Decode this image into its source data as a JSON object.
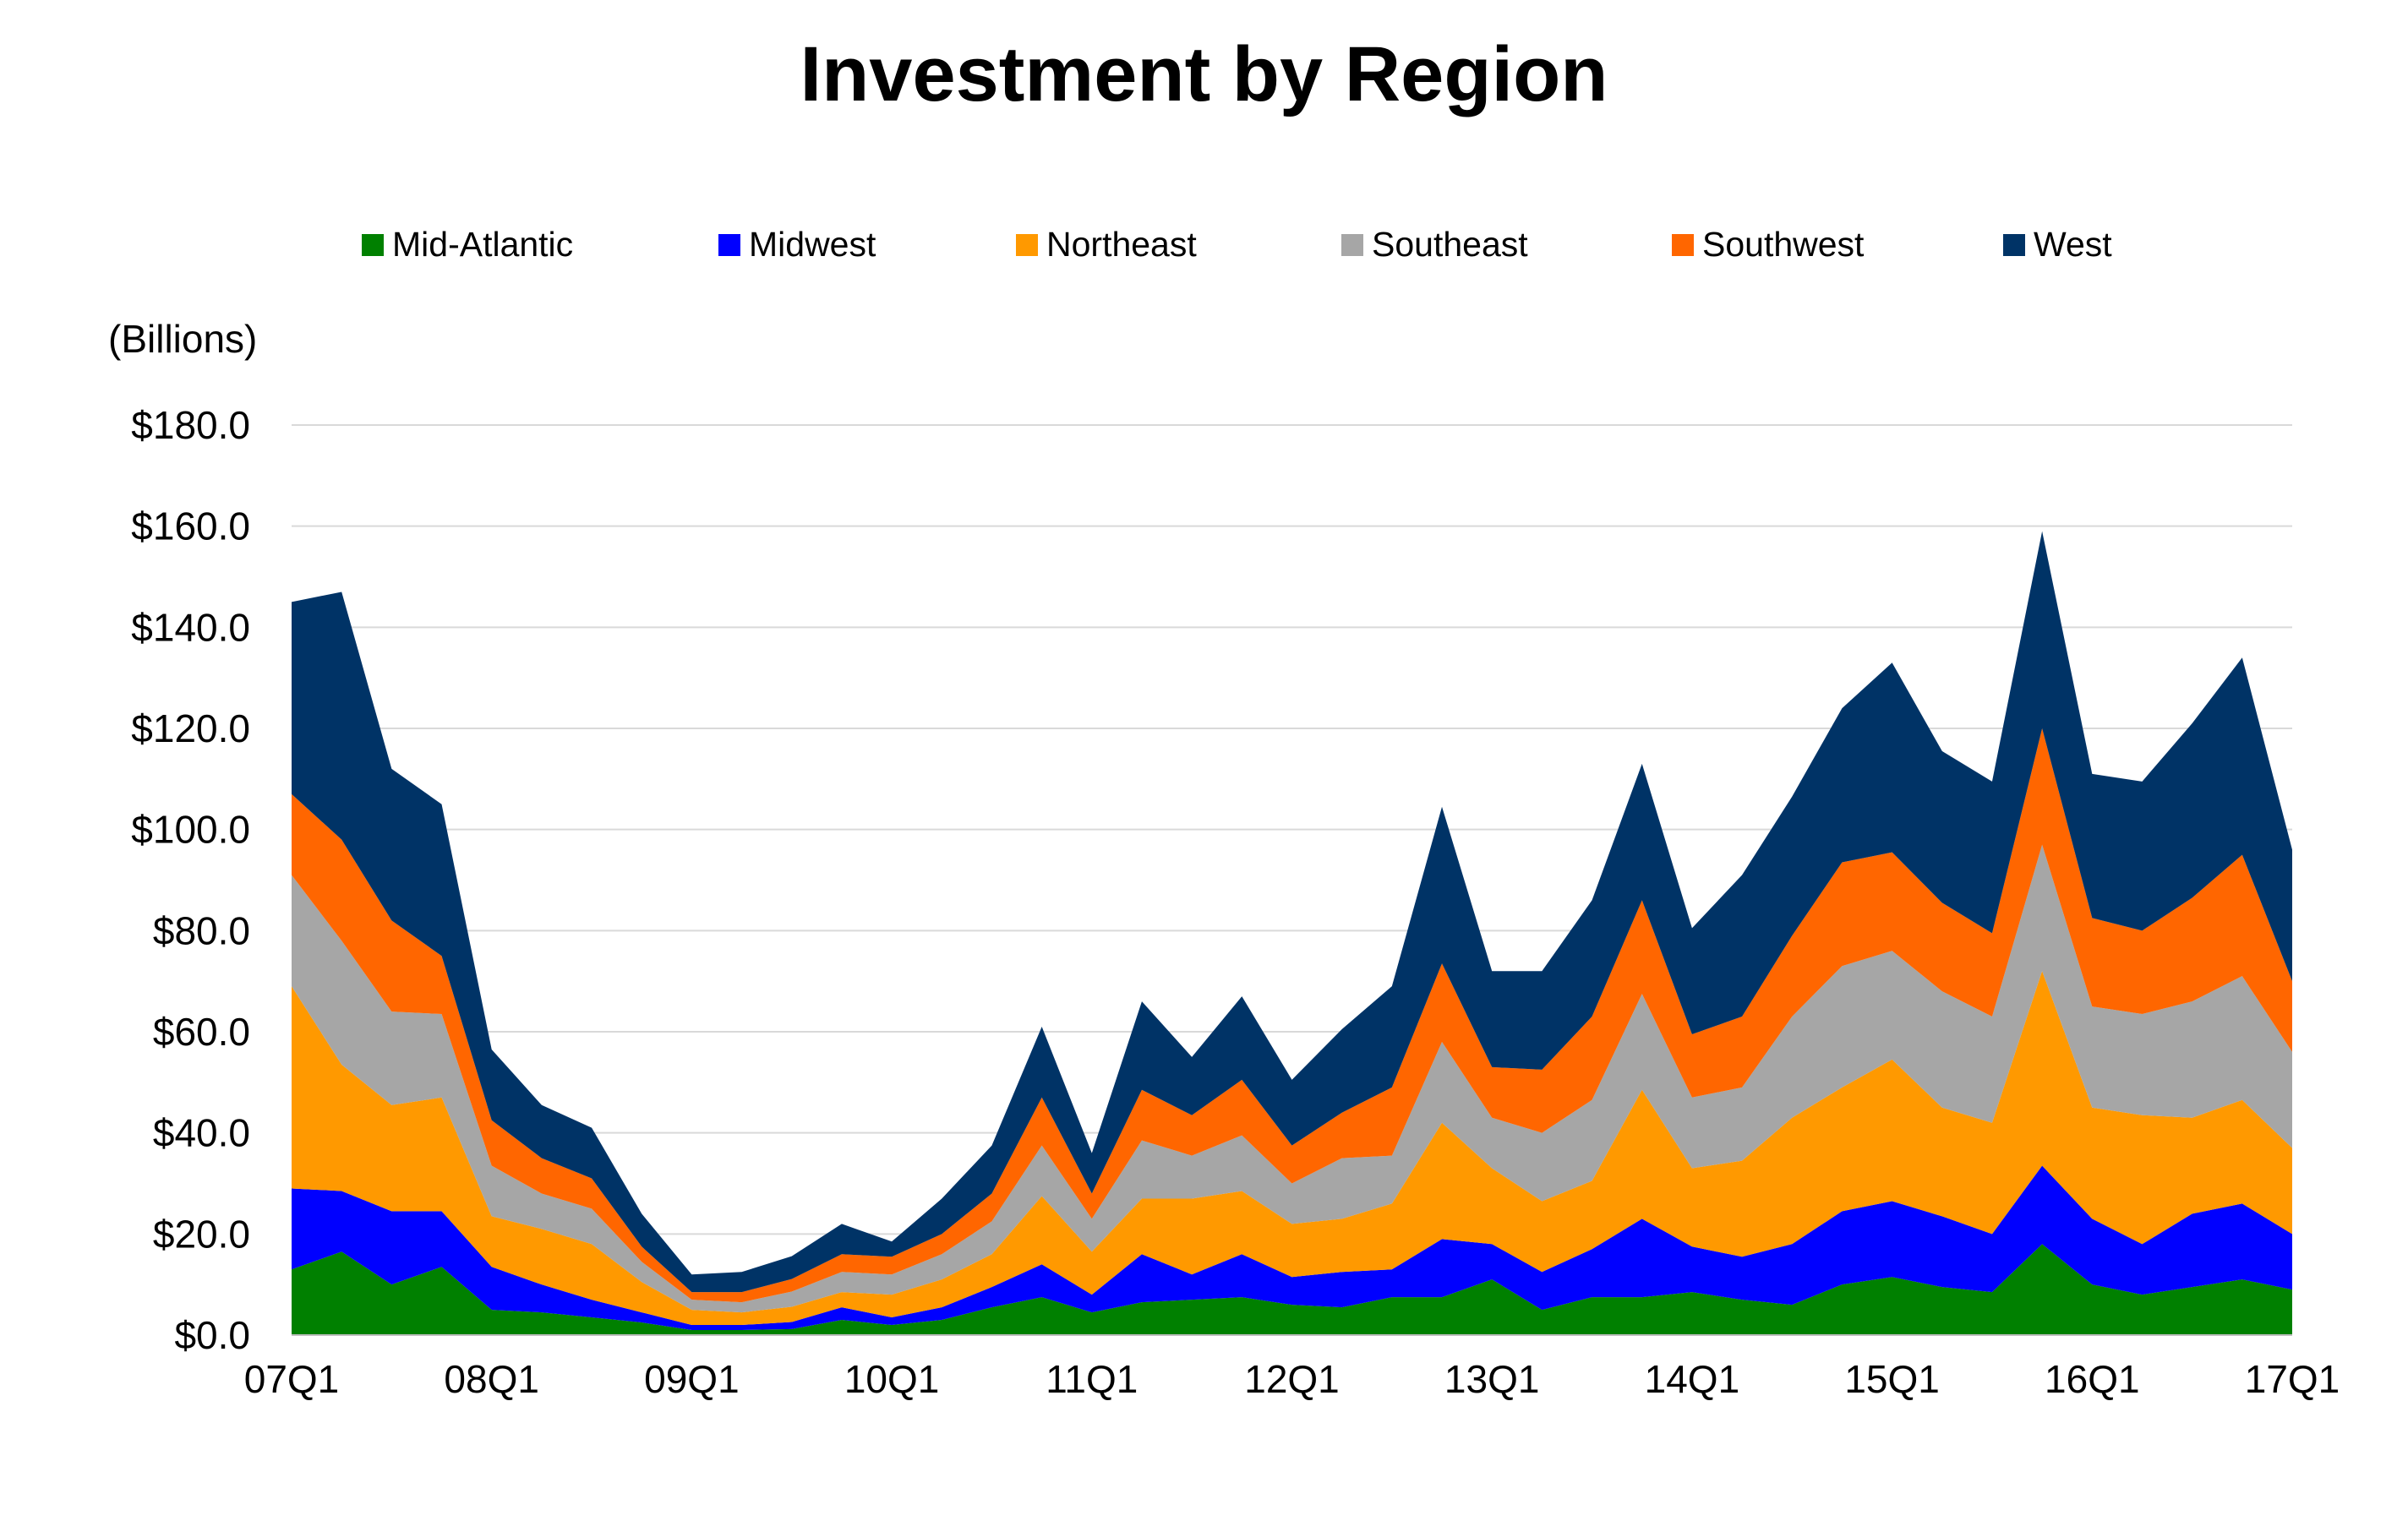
{
  "chart_data": {
    "type": "area",
    "stacked": true,
    "title": "Investment by Region",
    "ylabel": "(Billions)",
    "xlabel": "",
    "ylim": [
      0,
      180
    ],
    "yticks": [
      "$0.0",
      "$20.0",
      "$40.0",
      "$60.0",
      "$80.0",
      "$100.0",
      "$120.0",
      "$140.0",
      "$160.0",
      "$180.0"
    ],
    "ytick_values": [
      0,
      20,
      40,
      60,
      80,
      100,
      120,
      140,
      160,
      180
    ],
    "xticks": [
      "07Q1",
      "08Q1",
      "09Q1",
      "10Q1",
      "11Q1",
      "12Q1",
      "13Q1",
      "14Q1",
      "15Q1",
      "16Q1",
      "17Q1"
    ],
    "xtick_indices": [
      0,
      4,
      8,
      12,
      16,
      20,
      24,
      28,
      32,
      36,
      40
    ],
    "legend_position": "top",
    "grid": true,
    "categories": [
      "07Q1",
      "07Q2",
      "07Q3",
      "07Q4",
      "08Q1",
      "08Q2",
      "08Q3",
      "08Q4",
      "09Q1",
      "09Q2",
      "09Q3",
      "09Q4",
      "10Q1",
      "10Q2",
      "10Q3",
      "10Q4",
      "11Q1",
      "11Q2",
      "11Q3",
      "11Q4",
      "12Q1",
      "12Q2",
      "12Q3",
      "12Q4",
      "13Q1",
      "13Q2",
      "13Q3",
      "13Q4",
      "14Q1",
      "14Q2",
      "14Q3",
      "14Q4",
      "15Q1",
      "15Q2",
      "15Q3",
      "15Q4",
      "16Q1",
      "16Q2",
      "16Q3",
      "16Q4",
      "17Q1"
    ],
    "series": [
      {
        "name": "Mid-Atlantic",
        "color": "#008000",
        "values": [
          13,
          16.5,
          10,
          13.5,
          5,
          4.5,
          3.5,
          2.5,
          1,
          1,
          1.2,
          3,
          2,
          3,
          5.5,
          7.5,
          4.5,
          6.5,
          7,
          7.5,
          6,
          5.5,
          7.5,
          7.5,
          11,
          5,
          7.5,
          7.5,
          8.5,
          7,
          6,
          10,
          11.5,
          9.5,
          8.5,
          18,
          10,
          8,
          9.5,
          11,
          9
        ]
      },
      {
        "name": "Midwest",
        "color": "#0000FF",
        "values": [
          16,
          12,
          14.5,
          11,
          8.5,
          5.5,
          3.5,
          2,
          1,
          1,
          1.4,
          2.5,
          1.5,
          2.5,
          4,
          6.5,
          3.5,
          9.5,
          5,
          8.5,
          5.5,
          7,
          5.5,
          11.5,
          7,
          7.5,
          9.5,
          15.5,
          9,
          8.5,
          12,
          14.5,
          15,
          14,
          11.5,
          15.5,
          13,
          10,
          14.5,
          15,
          11
        ]
      },
      {
        "name": "Northeast",
        "color": "#FF9900",
        "values": [
          40,
          25,
          21,
          22.5,
          10,
          11,
          11,
          6,
          3,
          2.5,
          3,
          3,
          4.5,
          5.5,
          6.5,
          13.5,
          8.5,
          11,
          15,
          12.5,
          10.5,
          10.5,
          13,
          23,
          15,
          14,
          13.5,
          25.5,
          15.5,
          19,
          25,
          24.5,
          28,
          21.5,
          22,
          38.5,
          22,
          25.5,
          19,
          20.5,
          17
        ]
      },
      {
        "name": "Southeast",
        "color": "#A6A6A6",
        "values": [
          22,
          24.5,
          18.5,
          16.5,
          10,
          7,
          7,
          4,
          2,
          2,
          3,
          4,
          4,
          5,
          6.5,
          10,
          6.5,
          11.5,
          8.5,
          11,
          8,
          12,
          9.5,
          16,
          10,
          13.5,
          16,
          19,
          14,
          14.5,
          20,
          24,
          21.5,
          23,
          21,
          25,
          20,
          20,
          23,
          24.5,
          19
        ]
      },
      {
        "name": "Southwest",
        "color": "#FF6600",
        "values": [
          16,
          20,
          18,
          11.5,
          9,
          7,
          6,
          3,
          1.5,
          2,
          2.5,
          3.5,
          3.5,
          4,
          5.5,
          9.5,
          5,
          10,
          8,
          11,
          7.5,
          9,
          13.5,
          15.5,
          10,
          12.5,
          16.5,
          18.5,
          12.5,
          14,
          16,
          20.5,
          19.5,
          17.5,
          16.5,
          23,
          17.5,
          16.5,
          20.5,
          24,
          14
        ]
      },
      {
        "name": "West",
        "color": "#003366",
        "values": [
          38,
          49,
          30,
          30,
          14,
          10.5,
          10,
          6.5,
          3.5,
          4,
          4.5,
          6,
          3,
          7,
          9.5,
          14,
          8,
          17.5,
          11.5,
          16.5,
          13,
          16.5,
          20,
          31,
          19,
          19.5,
          23,
          27,
          21,
          28,
          27.5,
          30.5,
          37.5,
          30,
          30,
          39,
          28.5,
          29.5,
          34.5,
          39,
          26
        ]
      }
    ]
  }
}
